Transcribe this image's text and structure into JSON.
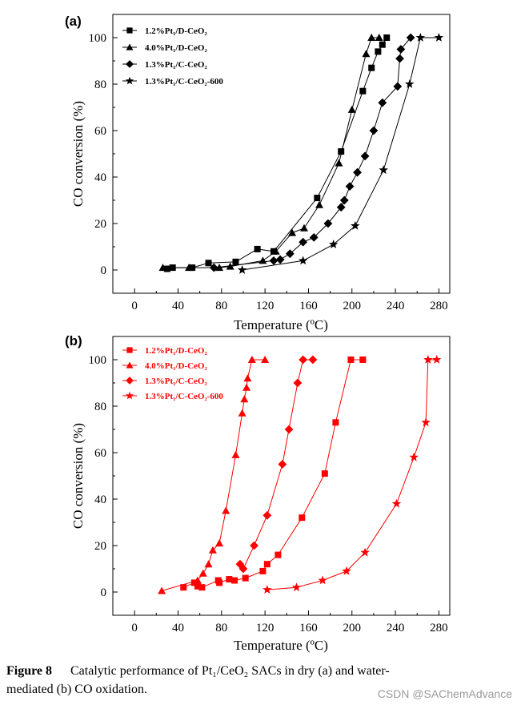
{
  "figure": {
    "caption_label": "Figure 8",
    "caption_text": "Catalytic performance of Pt₁/CeO₂ SACs in dry (a) and water-mediated (b) CO oxidation.",
    "watermark": "CSDN @SAChemAdvance"
  },
  "chart_data": [
    {
      "panel": "(a)",
      "type": "line",
      "color": "#000000",
      "xlabel": "Temperature (ºC)",
      "ylabel": "CO conversion (%)",
      "xlim": [
        -20,
        290
      ],
      "ylim": [
        -10,
        110
      ],
      "xticks": [
        0,
        40,
        80,
        120,
        160,
        200,
        240,
        280
      ],
      "yticks": [
        0,
        20,
        40,
        60,
        80,
        100
      ],
      "legend_position": "top-left",
      "series": [
        {
          "name": "1.2%Pt₁/D-CeO₂",
          "marker": "square",
          "x": [
            30,
            35,
            53,
            68,
            93,
            113,
            128,
            168,
            190,
            210,
            218,
            224,
            228,
            232
          ],
          "y": [
            0.5,
            1,
            1,
            3,
            3.5,
            9,
            8,
            31,
            51,
            77,
            87,
            94,
            97,
            100
          ]
        },
        {
          "name": "4.0%Pt₁/D-CeO₂",
          "marker": "triangle",
          "x": [
            26,
            50,
            78,
            88,
            118,
            130,
            145,
            156,
            170,
            188,
            200,
            213,
            218,
            225
          ],
          "y": [
            1,
            1,
            1,
            1.5,
            4,
            8,
            16,
            18,
            28,
            46,
            69,
            93,
            100,
            100
          ]
        },
        {
          "name": "1.3%Pt₁/C-CeO₂",
          "marker": "diamond",
          "x": [
            73,
            128,
            134,
            143,
            155,
            165,
            178,
            190,
            193,
            198,
            205,
            212,
            220,
            228,
            242,
            244,
            245,
            254
          ],
          "y": [
            1,
            4,
            4.5,
            7,
            12,
            14,
            20,
            27,
            30,
            36,
            42,
            49,
            60,
            72,
            79,
            91,
            95,
            100
          ]
        },
        {
          "name": "1.3%Pt₁/C-CeO₂-600",
          "marker": "star",
          "x": [
            99,
            155,
            183,
            203,
            229,
            253,
            263,
            280
          ],
          "y": [
            0,
            4,
            11,
            19,
            43,
            80,
            100,
            100
          ]
        }
      ]
    },
    {
      "panel": "(b)",
      "type": "line",
      "color": "#ff0000",
      "xlabel": "Temperature (ºC)",
      "ylabel": "CO conversion (%)",
      "xlim": [
        -20,
        290
      ],
      "ylim": [
        -10,
        110
      ],
      "xticks": [
        0,
        40,
        80,
        120,
        160,
        200,
        240,
        280
      ],
      "yticks": [
        0,
        20,
        40,
        60,
        80,
        100
      ],
      "legend_position": "top-left",
      "series": [
        {
          "name": "1.2%Pt₁/D-CeO₂",
          "marker": "square",
          "x": [
            45,
            55,
            58,
            62,
            77,
            78,
            87,
            92,
            102,
            118,
            122,
            132,
            154,
            175,
            185,
            199,
            210
          ],
          "y": [
            2,
            4,
            2.5,
            2,
            5,
            4,
            5.5,
            5,
            6,
            9,
            12,
            16,
            32,
            51,
            73,
            100,
            100
          ]
        },
        {
          "name": "4.0%Pt₁/D-CeO₂",
          "marker": "triangle",
          "x": [
            25,
            58,
            63,
            68,
            72,
            78,
            84,
            93,
            99,
            101,
            103,
            104,
            108,
            120
          ],
          "y": [
            0.5,
            5,
            8,
            12,
            18,
            21,
            35,
            59,
            77,
            83,
            88,
            92,
            100,
            100
          ]
        },
        {
          "name": "1.3%Pt₁/C-CeO₂",
          "marker": "diamond",
          "x": [
            97,
            100,
            110,
            122,
            136,
            142,
            150,
            155,
            164
          ],
          "y": [
            12,
            10,
            20,
            33,
            55,
            70,
            90,
            100,
            100
          ]
        },
        {
          "name": "1.3%Pt₁/C-CeO₂-600",
          "marker": "star",
          "x": [
            122,
            149,
            173,
            195,
            212,
            241,
            257,
            268,
            270,
            278
          ],
          "y": [
            1,
            2,
            5,
            9,
            17,
            38,
            58,
            73,
            100,
            100
          ]
        }
      ]
    }
  ]
}
